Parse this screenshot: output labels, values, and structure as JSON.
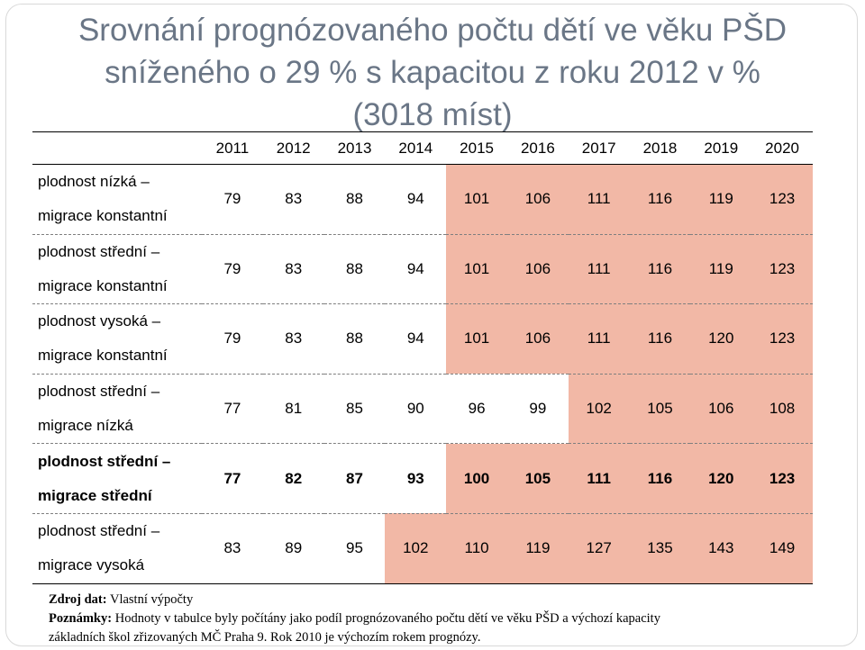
{
  "title": {
    "line1": "Srovnání prognózovaného počtu dětí ve věku PŠD",
    "line2": "sníženého o 29 % s kapacitou z roku 2012 v %",
    "line3": "(3018 míst)"
  },
  "table": {
    "years": [
      "2011",
      "2012",
      "2013",
      "2014",
      "2015",
      "2016",
      "2017",
      "2018",
      "2019",
      "2020"
    ],
    "rows": [
      {
        "label_line1": "plodnost nízká –",
        "label_line2": "migrace konstantní",
        "values": [
          "79",
          "83",
          "88",
          "94",
          "101",
          "106",
          "111",
          "116",
          "119",
          "123"
        ],
        "bold": false
      },
      {
        "label_line1": "plodnost střední –",
        "label_line2": "migrace konstantní",
        "values": [
          "79",
          "83",
          "88",
          "94",
          "101",
          "106",
          "111",
          "116",
          "119",
          "123"
        ],
        "bold": false
      },
      {
        "label_line1": "plodnost vysoká –",
        "label_line2": "migrace konstantní",
        "values": [
          "79",
          "83",
          "88",
          "94",
          "101",
          "106",
          "111",
          "116",
          "120",
          "123"
        ],
        "bold": false
      },
      {
        "label_line1": "plodnost střední –",
        "label_line2": "migrace nízká",
        "values": [
          "77",
          "81",
          "85",
          "90",
          "96",
          "99",
          "102",
          "105",
          "106",
          "108"
        ],
        "bold": false
      },
      {
        "label_line1": "plodnost střední –",
        "label_line2": "migrace střední",
        "values": [
          "77",
          "82",
          "87",
          "93",
          "100",
          "105",
          "111",
          "116",
          "120",
          "123"
        ],
        "bold": true
      },
      {
        "label_line1": "plodnost střední –",
        "label_line2": "migrace vysoká",
        "values": [
          "83",
          "89",
          "95",
          "102",
          "110",
          "119",
          "127",
          "135",
          "143",
          "149"
        ],
        "bold": false
      }
    ],
    "highlight_color": "#f2b8a6"
  },
  "footer": {
    "source_label": "Zdroj dat:",
    "source_text": "Vlastní výpočty",
    "notes_label": "Poznámky:",
    "notes_line1": "Hodnoty v tabulce byly počítány jako podíl prognózovaného počtu dětí ve věku PŠD a výchozí kapacity",
    "notes_line2": "základních škol zřizovaných MČ Praha 9. Rok 2010 je výchozím rokem prognózy."
  }
}
